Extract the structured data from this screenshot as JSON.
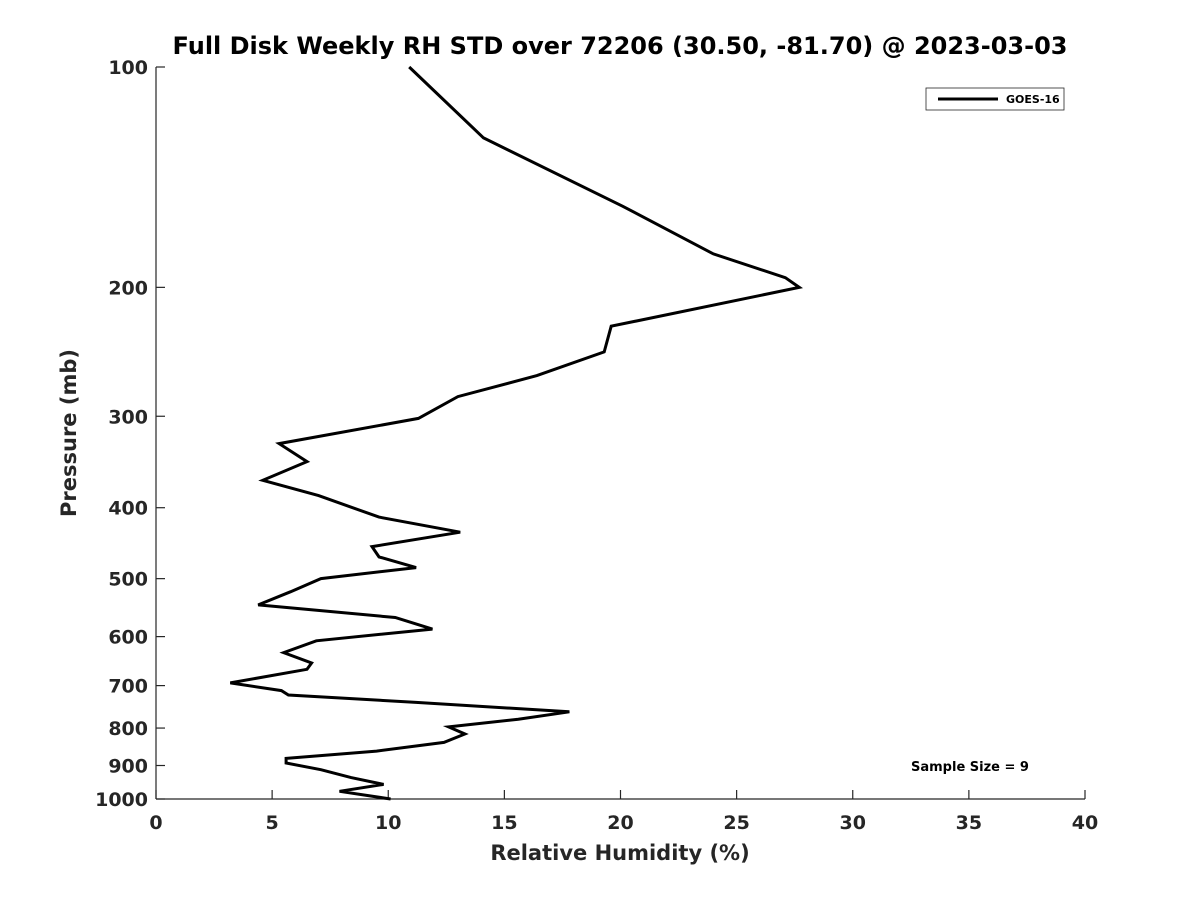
{
  "chart_data": {
    "type": "line",
    "title": "Full Disk Weekly RH STD over 72206 (30.50, -81.70) @ 2023-03-03",
    "xlabel": "Relative Humidity (%)",
    "ylabel": "Pressure (mb)",
    "xlim": [
      0,
      40
    ],
    "ylim": [
      100,
      1000
    ],
    "y_scale": "log",
    "y_reversed": true,
    "x_ticks": [
      0,
      5,
      10,
      15,
      20,
      25,
      30,
      35,
      40
    ],
    "y_ticks": [
      100,
      200,
      300,
      400,
      500,
      600,
      700,
      800,
      900,
      1000
    ],
    "grid": false,
    "legend_position": "top-right",
    "series": [
      {
        "name": "GOES-16",
        "color": "#000000",
        "points": [
          [
            10.9,
            100
          ],
          [
            14.1,
            125
          ],
          [
            20.1,
            155
          ],
          [
            24.0,
            180
          ],
          [
            27.1,
            194
          ],
          [
            27.7,
            200
          ],
          [
            19.6,
            226
          ],
          [
            19.3,
            245
          ],
          [
            16.4,
            264
          ],
          [
            13.0,
            282
          ],
          [
            11.3,
            302
          ],
          [
            5.3,
            327
          ],
          [
            6.5,
            346
          ],
          [
            4.6,
            367
          ],
          [
            7.0,
            385
          ],
          [
            9.6,
            412
          ],
          [
            13.1,
            432
          ],
          [
            9.3,
            452
          ],
          [
            9.6,
            467
          ],
          [
            11.2,
            483
          ],
          [
            7.1,
            500
          ],
          [
            5.8,
            521
          ],
          [
            4.4,
            543
          ],
          [
            10.3,
            565
          ],
          [
            11.9,
            586
          ],
          [
            6.9,
            608
          ],
          [
            5.5,
            631
          ],
          [
            6.7,
            652
          ],
          [
            6.5,
            665
          ],
          [
            3.2,
            694
          ],
          [
            5.4,
            711
          ],
          [
            5.7,
            721
          ],
          [
            11.2,
            738
          ],
          [
            17.8,
            760
          ],
          [
            15.6,
            778
          ],
          [
            12.6,
            797
          ],
          [
            13.3,
            815
          ],
          [
            12.4,
            837
          ],
          [
            9.5,
            860
          ],
          [
            5.6,
            880
          ],
          [
            5.6,
            893
          ],
          [
            7.1,
            912
          ],
          [
            8.4,
            935
          ],
          [
            9.8,
            955
          ],
          [
            7.9,
            976
          ],
          [
            10.1,
            1000
          ]
        ]
      }
    ],
    "annotation": "Sample Size = 9"
  }
}
